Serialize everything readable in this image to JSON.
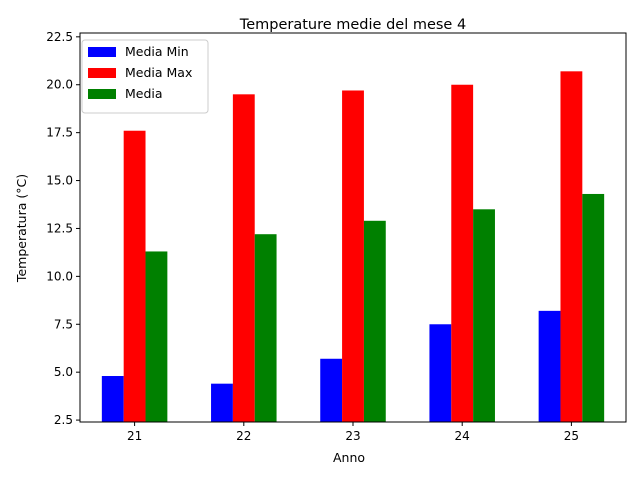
{
  "chart_data": {
    "type": "bar",
    "title": "Temperature medie del mese 4",
    "xlabel": "Anno",
    "ylabel": "Temperatura (°C)",
    "categories": [
      "21",
      "22",
      "23",
      "24",
      "25"
    ],
    "series": [
      {
        "name": "Media Min",
        "color": "#0000ff",
        "values": [
          4.8,
          4.4,
          5.7,
          7.5,
          8.2
        ]
      },
      {
        "name": "Media Max",
        "color": "#ff0000",
        "values": [
          17.6,
          19.5,
          19.7,
          20.0,
          20.7
        ]
      },
      {
        "name": "Media",
        "color": "#008000",
        "values": [
          11.3,
          12.2,
          12.9,
          13.5,
          14.3
        ]
      }
    ],
    "ylim": [
      2.4,
      22.7
    ],
    "yticks": [
      "2.5",
      "5.0",
      "7.5",
      "10.0",
      "12.5",
      "15.0",
      "17.5",
      "20.0",
      "22.5"
    ],
    "grid": false,
    "legend_position": "top-left"
  }
}
